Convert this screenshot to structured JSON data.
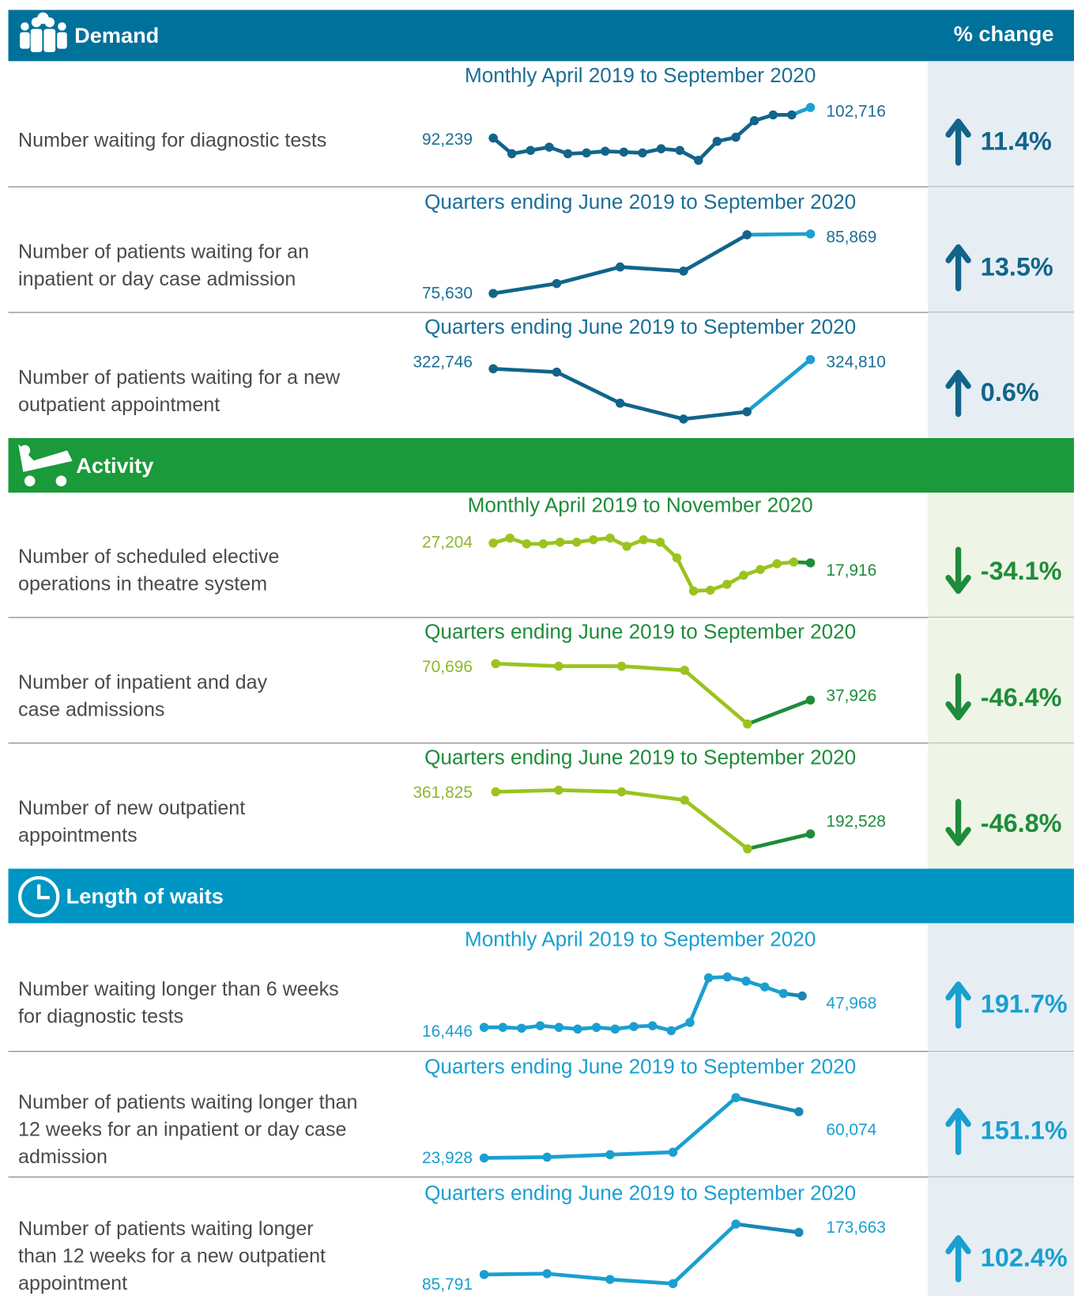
{
  "header_right": "% change",
  "sections": [
    {
      "title": "Demand",
      "color": "#00719a",
      "line_color": "#12648a",
      "last_color": "#1ba0d0",
      "text_color": "#1b6e96",
      "start_color": "#1b6e96",
      "panel_color": "#e6eef4",
      "rows": [
        {
          "label": [
            "Number waiting for diagnostic tests"
          ],
          "chart": {
            "type": "line",
            "subtitle": "Monthly April 2019 to September 2020",
            "values": [
              92239,
              86862,
              87994,
              89126,
              86862,
              87145,
              87711,
              87428,
              87145,
              88560,
              87994,
              84598,
              91107,
              92522,
              98182,
              100163,
              100163,
              102716
            ],
            "value_labels": [
              "92,239",
              null,
              null,
              null,
              null,
              null,
              null,
              null,
              null,
              null,
              null,
              null,
              null,
              null,
              null,
              null,
              null,
              "102,716"
            ]
          },
          "change": "11.4%"
        },
        {
          "label": [
            "Number of patients waiting for an",
            "inpatient or day case admission"
          ],
          "chart": {
            "type": "line",
            "subtitle": "Quarters ending June 2019 to September 2020",
            "values": [
              75630,
              77330,
              80180,
              79470,
              85720,
              85869
            ],
            "value_labels": [
              "75,630",
              null,
              null,
              null,
              null,
              "85,869"
            ]
          },
          "change": "13.5%"
        },
        {
          "label": [
            "Number of patients waiting for a new",
            "outpatient appointment"
          ],
          "chart": {
            "type": "line",
            "subtitle": "Quarters ending June 2019 to September 2020",
            "values": [
              322746,
              322000,
              315050,
              311500,
              313130,
              324810
            ],
            "value_labels": [
              "322,746",
              null,
              null,
              null,
              null,
              "324,810"
            ]
          },
          "change": "0.6%"
        }
      ]
    },
    {
      "title": "Activity",
      "color": "#1a9a3a",
      "line_color": "#9bc31e",
      "last_color": "#1e8c3a",
      "text_color": "#1e8c3a",
      "start_color": "#8db82a",
      "panel_color": "#eef5e6",
      "rows": [
        {
          "label": [
            "Number of scheduled elective",
            "operations in theatre system"
          ],
          "chart": {
            "type": "line",
            "subtitle": "Monthly April 2019 to November 2020",
            "values": [
              27204,
              29526,
              26817,
              26817,
              27591,
              27591,
              28752,
              29526,
              25656,
              28752,
              27591,
              20238,
              4758,
              5145,
              7854,
              12111,
              14820,
              17529,
              18300,
              17916
            ],
            "value_labels": [
              "27,204",
              null,
              null,
              null,
              null,
              null,
              null,
              null,
              null,
              null,
              null,
              null,
              null,
              null,
              null,
              null,
              null,
              null,
              null,
              "17,916"
            ]
          },
          "change": "-34.1%"
        },
        {
          "label": [
            "Number of inpatient and day",
            "case admissions"
          ],
          "chart": {
            "type": "line",
            "subtitle": "Quarters ending June 2019 to September 2020",
            "values": [
              70696,
              68460,
              68460,
              64740,
              16310,
              37926
            ],
            "value_labels": [
              "70,696",
              null,
              null,
              null,
              null,
              "37,926"
            ]
          },
          "change": "-46.4%"
        },
        {
          "label": [
            "Number of new outpatient",
            "appointments"
          ],
          "chart": {
            "type": "line",
            "subtitle": "Quarters ending June 2019 to September 2020",
            "values": [
              361825,
              368470,
              361825,
              328630,
              132750,
              192528
            ],
            "value_labels": [
              "361,825",
              null,
              null,
              null,
              null,
              "192,528"
            ]
          },
          "change": "-46.8%"
        }
      ]
    },
    {
      "title": "Length of waits",
      "color": "#0096c3",
      "line_color": "#1a9fd0",
      "last_color": "#1a87b5",
      "text_color": "#1a9fd0",
      "start_color": "#1a9fd0",
      "panel_color": "#e6eef4",
      "rows": [
        {
          "label": [
            "Number waiting longer than 6 weeks",
            "for diagnostic tests"
          ],
          "chart": {
            "type": "line",
            "subtitle": "Monthly April 2019 to September 2020",
            "values": [
              16446,
              16446,
              15617,
              18105,
              16446,
              14787,
              16446,
              14787,
              17276,
              18105,
              13128,
              21423,
              66216,
              67046,
              62898,
              57092,
              50456,
              47968
            ],
            "value_labels": [
              "16,446",
              null,
              null,
              null,
              null,
              null,
              null,
              null,
              null,
              null,
              null,
              null,
              null,
              null,
              null,
              null,
              null,
              "47,968"
            ]
          },
          "change": "191.7%"
        },
        {
          "label": [
            "Number of patients waiting longer than",
            "12 weeks for an inpatient or day case",
            "admission"
          ],
          "chart": {
            "type": "line",
            "subtitle": "Quarters ending June 2019 to September 2020",
            "values": [
              23928,
              24570,
              26510,
              28440,
              71040,
              60074
            ],
            "value_labels": [
              "23,928",
              null,
              null,
              null,
              null,
              "60,074"
            ]
          },
          "change": "151.1%"
        },
        {
          "label": [
            "Number of patients waiting longer",
            "than 12 weeks for a new outpatient",
            "appointment"
          ],
          "chart": {
            "type": "line",
            "subtitle": "Quarters ending June 2019 to September 2020",
            "values": [
              85791,
              87510,
              75450,
              66840,
              190890,
              173663
            ],
            "value_labels": [
              "85,791",
              null,
              null,
              null,
              null,
              "173,663"
            ]
          },
          "change": "102.4%"
        }
      ]
    }
  ]
}
